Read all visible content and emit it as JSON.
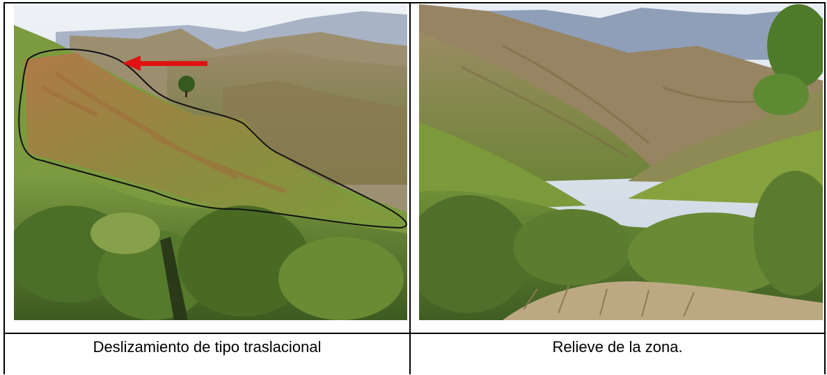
{
  "figures": [
    {
      "caption": "Deslizamiento de tipo traslacional",
      "annotations": {
        "outline_color": "#111111",
        "arrow_color": "#e01212"
      }
    },
    {
      "caption": "Relieve de la zona."
    }
  ],
  "colors": {
    "sky": "#dfe6ee",
    "far_mountains": "#8f9fb8",
    "mid_slopes": "#9a8a62",
    "vegetation": "#6f8c35",
    "dark_vegetation": "#3f5f22",
    "bare_soil": "#b5865a"
  }
}
